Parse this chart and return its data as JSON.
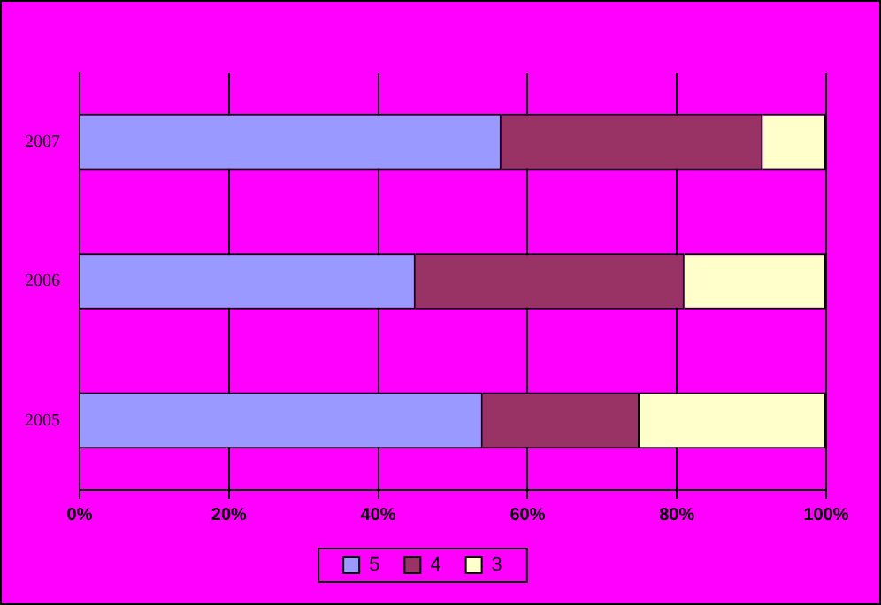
{
  "chart_data": {
    "type": "bar",
    "orientation": "horizontal",
    "stacked": true,
    "categories": [
      "2007",
      "2006",
      "2005"
    ],
    "series": [
      {
        "name": "5",
        "color": "#9999ff",
        "values": [
          56.5,
          45,
          54
        ]
      },
      {
        "name": "4",
        "color": "#993366",
        "values": [
          35,
          36,
          21
        ]
      },
      {
        "name": "3",
        "color": "#ffffcc",
        "values": [
          8.5,
          19,
          25
        ]
      }
    ],
    "xlim": [
      0,
      100
    ],
    "xticks": [
      {
        "value": 0,
        "label": "0%"
      },
      {
        "value": 20,
        "label": "20%"
      },
      {
        "value": 40,
        "label": "40%"
      },
      {
        "value": 60,
        "label": "60%"
      },
      {
        "value": 80,
        "label": "80%"
      },
      {
        "value": 100,
        "label": "100%"
      }
    ],
    "grid": "x",
    "legend": "bottom"
  }
}
